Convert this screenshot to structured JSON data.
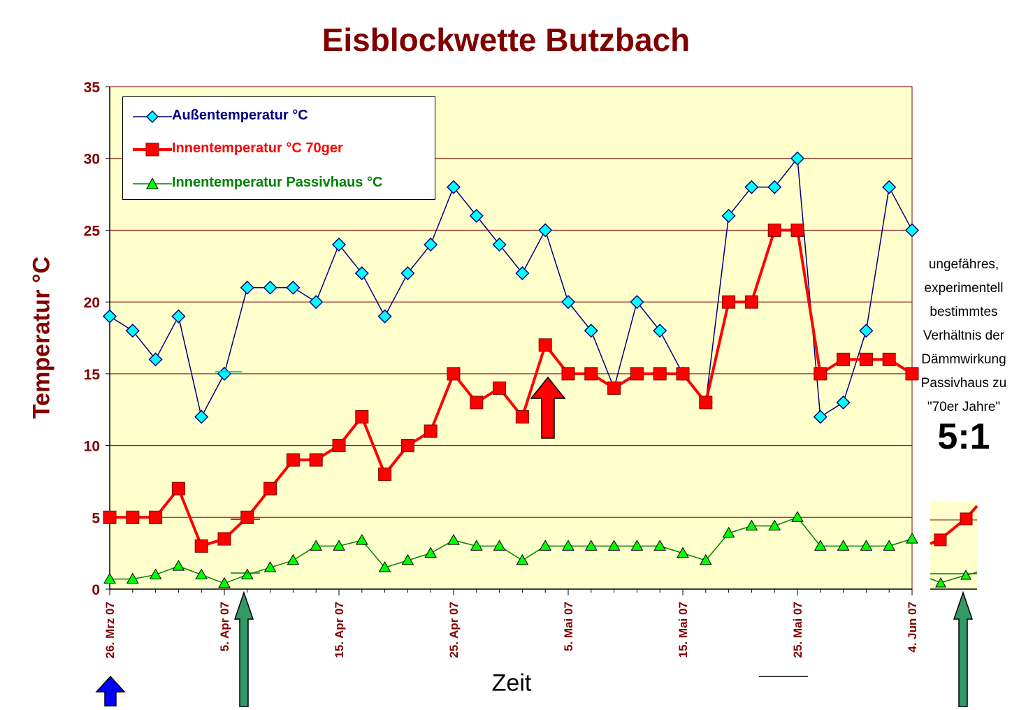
{
  "title": "Eisblockwette Butzbach",
  "chart_data": {
    "type": "line",
    "title": "Eisblockwette Butzbach",
    "xlabel": "Zeit",
    "ylabel": "Temperatur °C",
    "ylim": [
      0,
      35
    ],
    "yticks": [
      "0",
      "5",
      "10",
      "15",
      "20",
      "25",
      "30",
      "35"
    ],
    "x_interval_days": 2,
    "xtick_labels": [
      "26. Mrz 07",
      "5. Apr 07",
      "15. Apr 07",
      "25. Apr 07",
      "5. Mai 07",
      "15. Mai 07",
      "25. Mai 07",
      "4. Jun 07"
    ],
    "xtick_index": [
      0,
      5,
      10,
      15,
      20,
      25,
      30,
      35
    ],
    "grid": "horizontal",
    "legend_position": "top-left",
    "series": [
      {
        "name": "Außentemperatur °C",
        "color": "#000080",
        "marker": "diamond",
        "marker_color": "#00ffff",
        "values": [
          19,
          18,
          16,
          19,
          12,
          15,
          21,
          21,
          21,
          20,
          24,
          22,
          19,
          22,
          24,
          28,
          26,
          24,
          22,
          25,
          20,
          18,
          14,
          20,
          18,
          15,
          13,
          26,
          28,
          28,
          30,
          12,
          13,
          18,
          28,
          25
        ]
      },
      {
        "name": "Innentemperatur °C 70ger",
        "color": "#ff0000",
        "marker": "square",
        "marker_color": "#ff0000",
        "values": [
          5,
          5,
          5,
          7,
          3,
          3.5,
          5,
          7,
          9,
          9,
          10,
          12,
          8,
          10,
          11,
          15,
          13,
          14,
          12,
          17,
          15,
          15,
          14,
          15,
          15,
          15,
          13,
          20,
          20,
          25,
          25,
          15,
          16,
          16,
          16,
          15
        ]
      },
      {
        "name": "Innentemperatur Passivhaus °C",
        "color": "#008000",
        "marker": "triangle",
        "marker_color": "#00ff00",
        "values": [
          0.7,
          0.7,
          1,
          1.6,
          1,
          0.4,
          1,
          1.5,
          2,
          3,
          3,
          3.4,
          1.5,
          2,
          2.5,
          3.4,
          3,
          3,
          2,
          3,
          3,
          3,
          3,
          3,
          3,
          2.5,
          2,
          3.9,
          4.4,
          4.4,
          5,
          3,
          3,
          3,
          3,
          3.5
        ]
      }
    ]
  },
  "side_note": {
    "lines": [
      "ungefähres,",
      "experimentell",
      "bestimmtes",
      "Verhältnis der",
      "Dämmwirkung",
      "Passivhaus zu",
      "\"70er Jahre\""
    ],
    "ratio": "5:1"
  }
}
